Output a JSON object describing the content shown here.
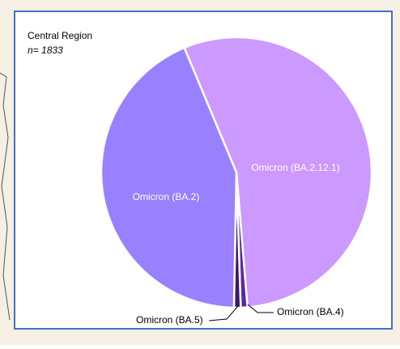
{
  "chart_data": {
    "type": "pie",
    "title": "Central Region",
    "subtitle": "n= 1833",
    "categories": [
      "Omicron (BA.2.12.1)",
      "Omicron (BA.4)",
      "Omicron (BA.5)",
      "Omicron (BA.2)"
    ],
    "values": [
      55,
      0.8,
      0.8,
      43.4
    ],
    "colors": [
      "#cc99ff",
      "#5b2a9e",
      "#3b1670",
      "#9980ff"
    ]
  }
}
